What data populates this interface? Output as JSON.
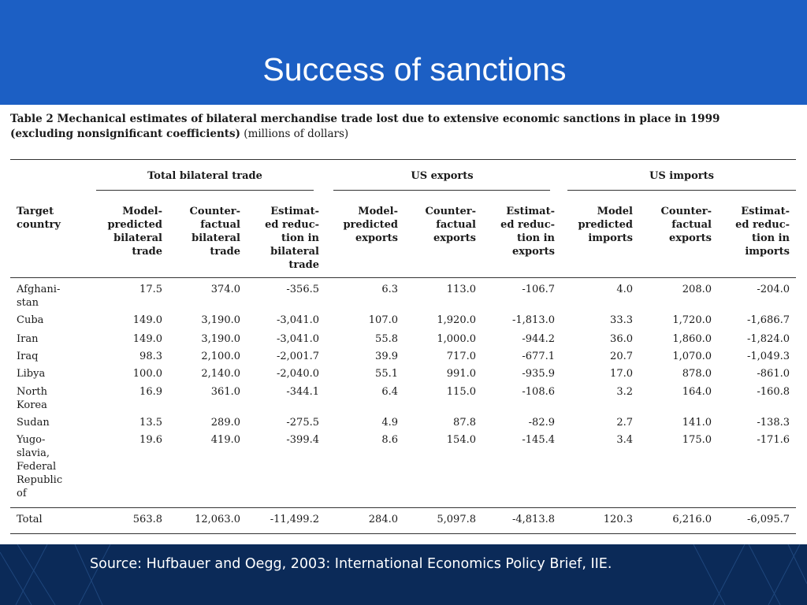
{
  "slide": {
    "title": "Success of sanctions",
    "source": "Source: Hufbauer and Oegg, 2003: International Economics Policy Brief, IIE."
  },
  "table": {
    "caption_bold": "Table 2  Mechanical estimates of bilateral merchandise trade lost due to extensive economic sanctions in place in 1999 (excluding nonsignificant coefficients)",
    "caption_units": "(millions of dollars)",
    "groups": [
      "Total bilateral trade",
      "US exports",
      "US imports"
    ],
    "columns": [
      "Target\ncountry",
      "Model-\npredicted\nbilateral\ntrade",
      "Counter-\nfactual\nbilateral\ntrade",
      "Estimat-\ned reduc-\ntion in\nbilateral\ntrade",
      "Model-\npredicted\nexports",
      "Counter-\nfactual\nexports",
      "Estimat-\ned reduc-\ntion in\nexports",
      "Model\npredicted\nimports",
      "Counter-\nfactual\nexports",
      "Estimat-\ned reduc-\ntion in\nimports"
    ],
    "rows": [
      {
        "country": "Afghani-\nstan",
        "values": [
          "17.5",
          "374.0",
          "-356.5",
          "6.3",
          "113.0",
          "-106.7",
          "4.0",
          "208.0",
          "-204.0"
        ]
      },
      {
        "country": "Cuba",
        "values": [
          "149.0",
          "3,190.0",
          "-3,041.0",
          "107.0",
          "1,920.0",
          "-1,813.0",
          "33.3",
          "1,720.0",
          "-1,686.7"
        ]
      },
      {
        "country": "Iran",
        "values": [
          "149.0",
          "3,190.0",
          "-3,041.0",
          "55.8",
          "1,000.0",
          "-944.2",
          "36.0",
          "1,860.0",
          "-1,824.0"
        ]
      },
      {
        "country": "Iraq",
        "values": [
          "98.3",
          "2,100.0",
          "-2,001.7",
          "39.9",
          "717.0",
          "-677.1",
          "20.7",
          "1,070.0",
          "-1,049.3"
        ]
      },
      {
        "country": "Libya",
        "values": [
          "100.0",
          "2,140.0",
          "-2,040.0",
          "55.1",
          "991.0",
          "-935.9",
          "17.0",
          "878.0",
          "-861.0"
        ]
      },
      {
        "country": "North\nKorea",
        "values": [
          "16.9",
          "361.0",
          "-344.1",
          "6.4",
          "115.0",
          "-108.6",
          "3.2",
          "164.0",
          "-160.8"
        ]
      },
      {
        "country": "Sudan",
        "values": [
          "13.5",
          "289.0",
          "-275.5",
          "4.9",
          "87.8",
          "-82.9",
          "2.7",
          "141.0",
          "-138.3"
        ]
      },
      {
        "country": "Yugo-\nslavia,\nFederal\nRepublic\nof",
        "values": [
          "19.6",
          "419.0",
          "-399.4",
          "8.6",
          "154.0",
          "-145.4",
          "3.4",
          "175.0",
          "-171.6"
        ]
      }
    ],
    "total": {
      "country": "Total",
      "values": [
        "563.8",
        "12,063.0",
        "-11,499.2",
        "284.0",
        "5,097.8",
        "-4,813.8",
        "120.3",
        "6,216.0",
        "-6,095.7"
      ]
    }
  },
  "colors": {
    "header_band": "#1c5fc4",
    "footer_band": "#0b2a58",
    "panel": "#ffffff"
  }
}
